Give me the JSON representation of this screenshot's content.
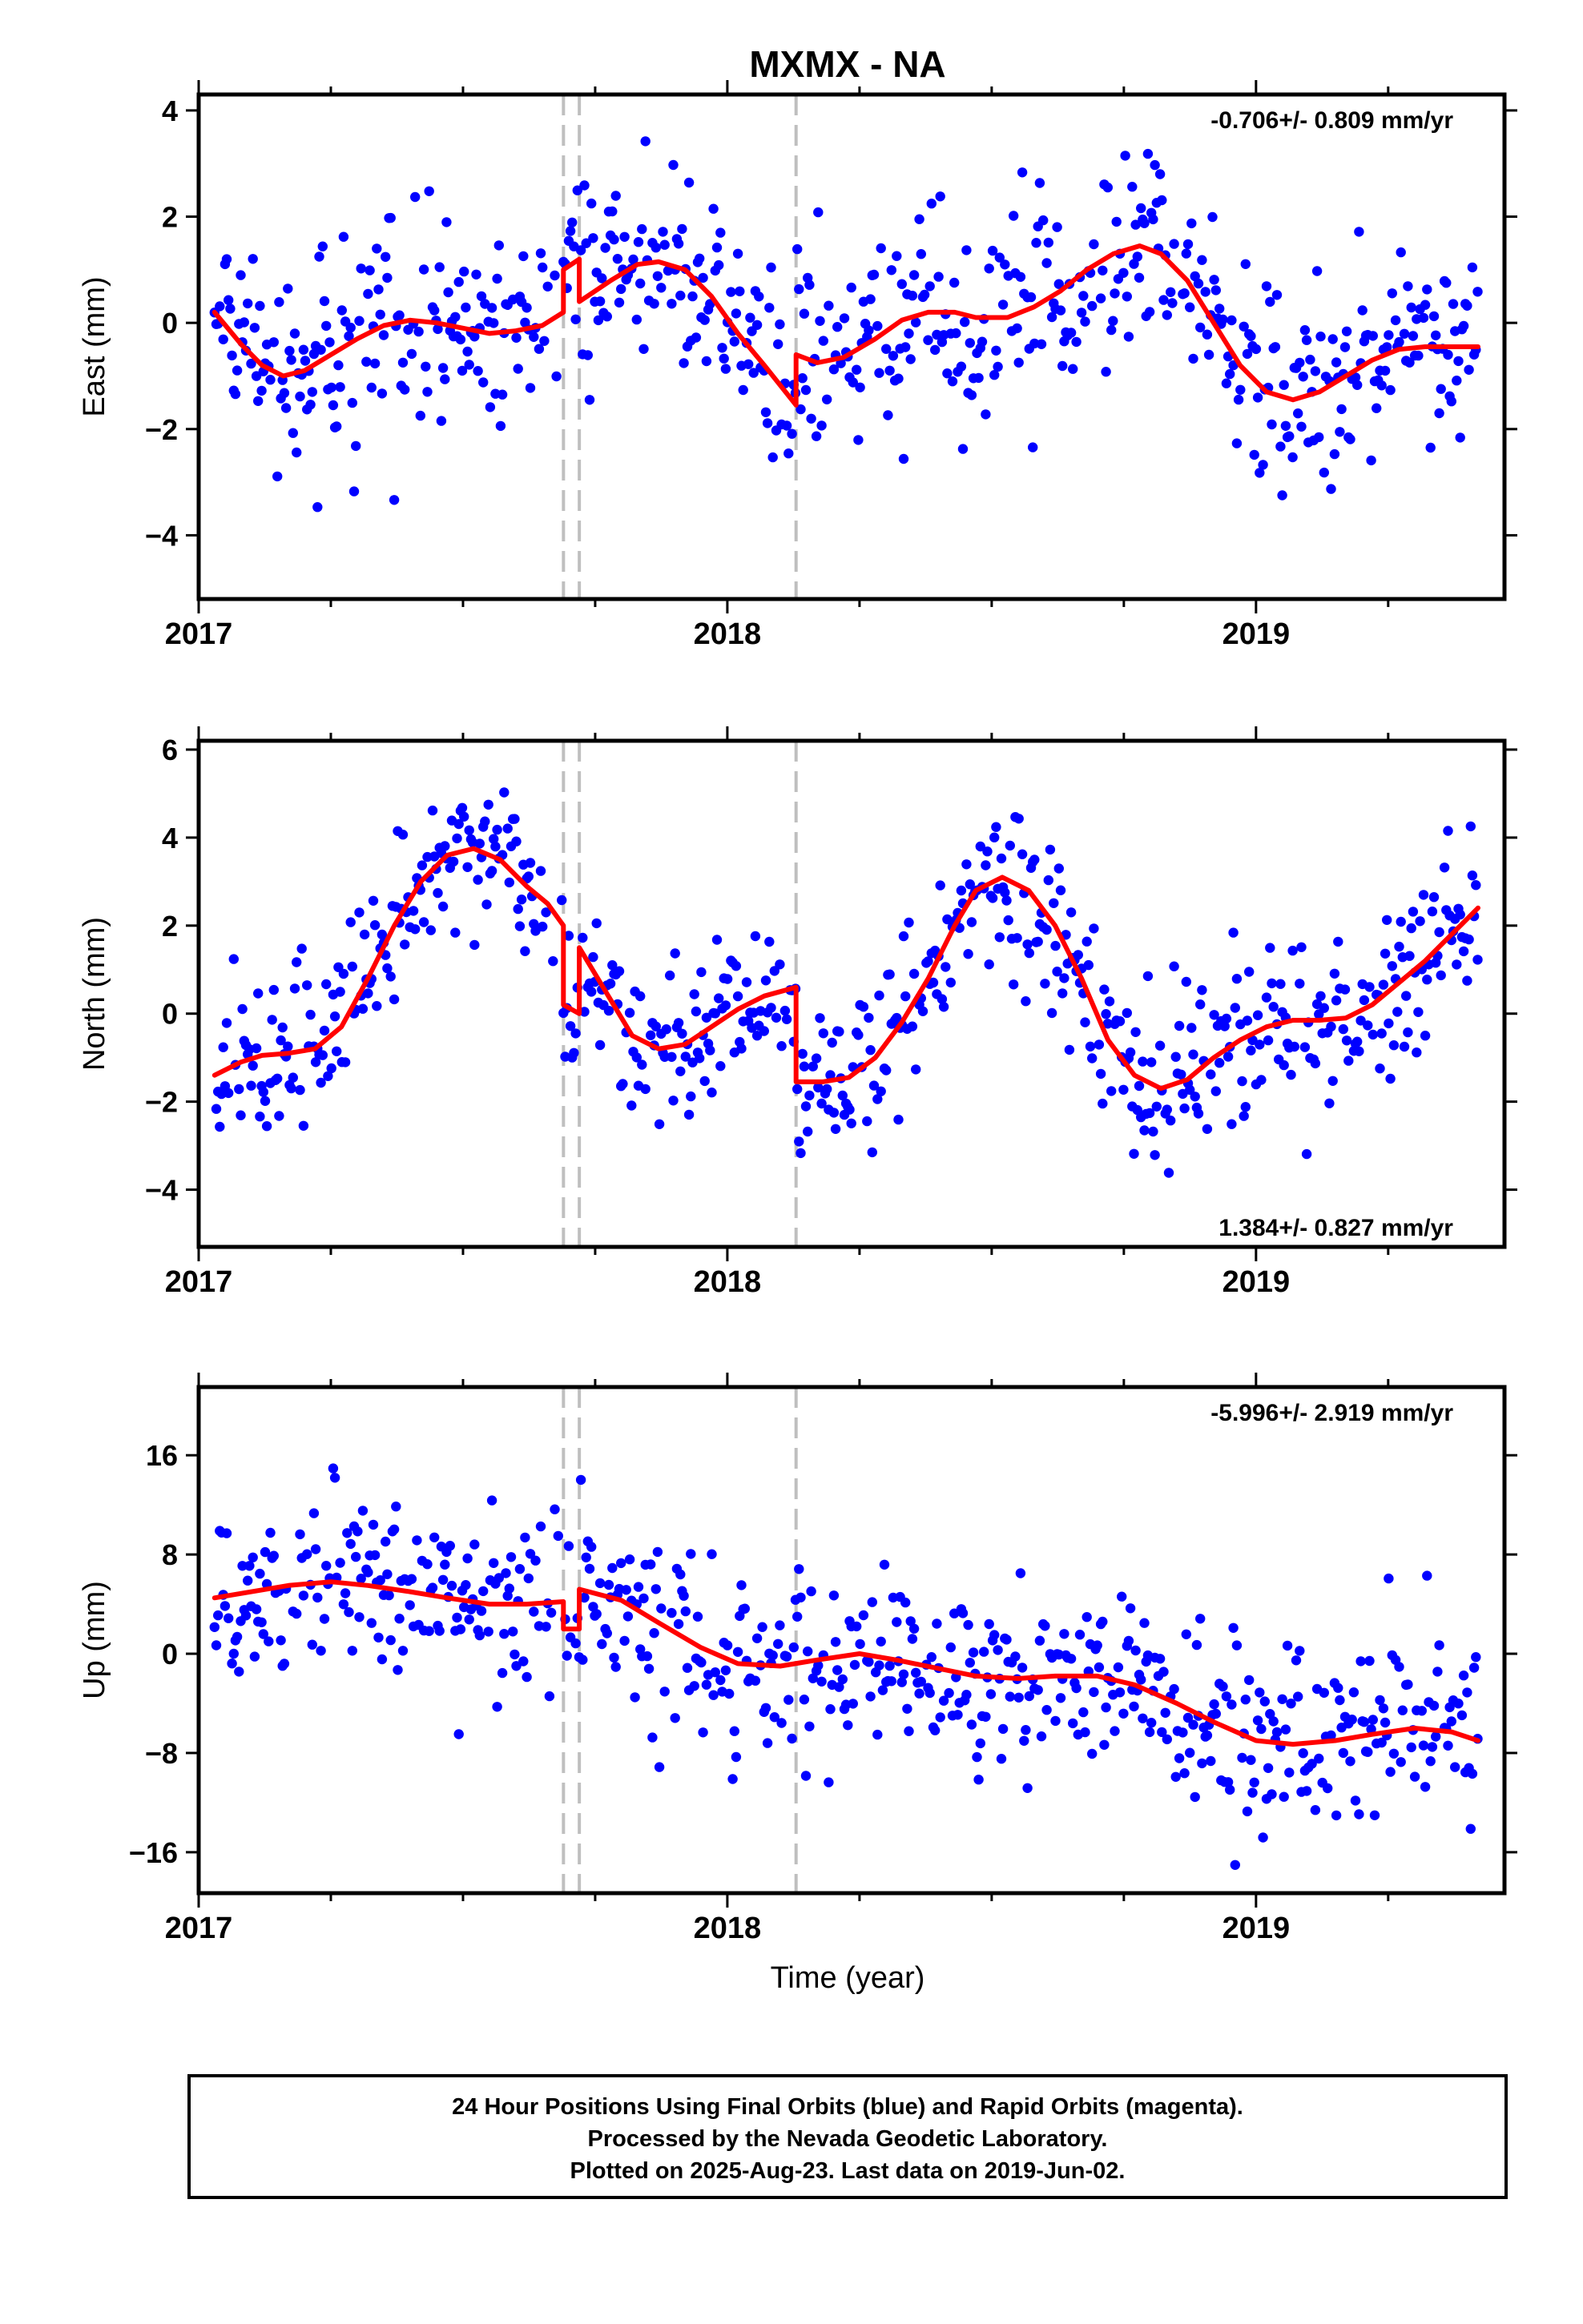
{
  "figure": {
    "title": "MXMX - NA",
    "xlabel": "Time (year)",
    "footer_lines": [
      "24 Hour Positions Using Final Orbits (blue) and Rapid Orbits (magenta).",
      "Processed by the Nevada Geodetic Laboratory.",
      "Plotted on 2025-Aug-23. Last data on 2019-Jun-02."
    ],
    "colors": {
      "points": "#0000ff",
      "fit": "#ff0000",
      "offset_lines": "#bfbfbf",
      "frame": "#000000"
    }
  },
  "chart_data": [
    {
      "type": "scatter",
      "name": "East",
      "ylabel": "East (mm)",
      "rate_label": "-0.706+/- 0.809 mm/yr",
      "rate_position": "top-right",
      "xlim": [
        2017.0,
        2019.47
      ],
      "ylim": [
        -5.2,
        4.3
      ],
      "xticks": [
        2017,
        2018,
        2019
      ],
      "yticks": [
        -4,
        -2,
        0,
        2,
        4
      ],
      "yticklabels": [
        "−4",
        "−2",
        "0",
        "2",
        "4"
      ],
      "offset_epochs": [
        2017.69,
        2017.72,
        2018.13
      ],
      "fit": {
        "x": [
          2017.03,
          2017.08,
          2017.12,
          2017.16,
          2017.2,
          2017.25,
          2017.3,
          2017.35,
          2017.4,
          2017.45,
          2017.5,
          2017.55,
          2017.6,
          2017.65,
          2017.69,
          2017.69,
          2017.72,
          2017.72,
          2017.78,
          2017.83,
          2017.87,
          2017.92,
          2017.97,
          2018.02,
          2018.07,
          2018.13,
          2018.13,
          2018.17,
          2018.22,
          2018.28,
          2018.33,
          2018.38,
          2018.43,
          2018.47,
          2018.53,
          2018.58,
          2018.63,
          2018.68,
          2018.73,
          2018.78,
          2018.82,
          2018.87,
          2018.92,
          2018.97,
          2019.02,
          2019.07,
          2019.12,
          2019.17,
          2019.22,
          2019.27,
          2019.32,
          2019.37,
          2019.42
        ],
        "y": [
          0.2,
          -0.4,
          -0.8,
          -1.0,
          -0.9,
          -0.6,
          -0.3,
          -0.05,
          0.05,
          0.0,
          -0.1,
          -0.2,
          -0.15,
          -0.05,
          0.2,
          1.0,
          1.2,
          0.4,
          0.8,
          1.1,
          1.15,
          1.0,
          0.5,
          -0.2,
          -0.8,
          -1.55,
          -0.6,
          -0.75,
          -0.65,
          -0.3,
          0.05,
          0.2,
          0.2,
          0.1,
          0.1,
          0.3,
          0.6,
          1.0,
          1.3,
          1.45,
          1.3,
          0.8,
          0.0,
          -0.8,
          -1.3,
          -1.45,
          -1.3,
          -1.0,
          -0.7,
          -0.5,
          -0.45,
          -0.45,
          -0.45
        ]
      }
    },
    {
      "type": "scatter",
      "name": "North",
      "ylabel": "North (mm)",
      "rate_label": "1.384+/- 0.827 mm/yr",
      "rate_position": "bottom-right",
      "xlim": [
        2017.0,
        2019.47
      ],
      "ylim": [
        -5.3,
        6.2
      ],
      "xticks": [
        2017,
        2018,
        2019
      ],
      "yticks": [
        -4,
        -2,
        0,
        2,
        4,
        6
      ],
      "yticklabels": [
        "−4",
        "−2",
        "0",
        "2",
        "4",
        "6"
      ],
      "offset_epochs": [
        2017.69,
        2017.72,
        2018.13
      ],
      "fit": {
        "x": [
          2017.03,
          2017.08,
          2017.12,
          2017.17,
          2017.22,
          2017.27,
          2017.32,
          2017.37,
          2017.42,
          2017.47,
          2017.52,
          2017.57,
          2017.62,
          2017.66,
          2017.69,
          2017.69,
          2017.72,
          2017.72,
          2017.77,
          2017.82,
          2017.87,
          2017.92,
          2017.97,
          2018.02,
          2018.07,
          2018.13,
          2018.13,
          2018.18,
          2018.23,
          2018.28,
          2018.33,
          2018.38,
          2018.43,
          2018.47,
          2018.52,
          2018.57,
          2018.62,
          2018.67,
          2018.72,
          2018.77,
          2018.82,
          2018.87,
          2018.92,
          2018.97,
          2019.02,
          2019.07,
          2019.12,
          2019.17,
          2019.22,
          2019.27,
          2019.32,
          2019.37,
          2019.42
        ],
        "y": [
          -1.4,
          -1.1,
          -0.95,
          -0.9,
          -0.8,
          -0.3,
          0.8,
          2.0,
          3.0,
          3.6,
          3.75,
          3.5,
          2.9,
          2.5,
          2.0,
          0.2,
          0.0,
          1.5,
          0.5,
          -0.5,
          -0.8,
          -0.7,
          -0.3,
          0.1,
          0.4,
          0.6,
          -1.55,
          -1.55,
          -1.45,
          -1.0,
          -0.2,
          0.8,
          2.0,
          2.8,
          3.1,
          2.8,
          2.0,
          0.8,
          -0.6,
          -1.4,
          -1.7,
          -1.5,
          -1.0,
          -0.6,
          -0.3,
          -0.15,
          -0.15,
          -0.1,
          0.2,
          0.7,
          1.2,
          1.8,
          2.4
        ]
      }
    },
    {
      "type": "scatter",
      "name": "Up",
      "ylabel": "Up (mm)",
      "rate_label": "-5.996+/- 2.919 mm/yr",
      "rate_position": "top-right",
      "xlim": [
        2017.0,
        2019.47
      ],
      "ylim": [
        -19.3,
        21.5
      ],
      "xticks": [
        2017,
        2018,
        2019
      ],
      "yticks": [
        -16,
        -8,
        0,
        8,
        16
      ],
      "yticklabels": [
        "−16",
        "−8",
        "0",
        "8",
        "16"
      ],
      "offset_epochs": [
        2017.69,
        2017.72,
        2018.13
      ],
      "fit": {
        "x": [
          2017.03,
          2017.1,
          2017.17,
          2017.25,
          2017.32,
          2017.4,
          2017.47,
          2017.55,
          2017.62,
          2017.69,
          2017.69,
          2017.72,
          2017.72,
          2017.8,
          2017.87,
          2017.95,
          2018.02,
          2018.1,
          2018.17,
          2018.25,
          2018.32,
          2018.4,
          2018.47,
          2018.55,
          2018.62,
          2018.7,
          2018.77,
          2018.85,
          2018.92,
          2019.0,
          2019.07,
          2019.15,
          2019.22,
          2019.3,
          2019.37,
          2019.42
        ],
        "y": [
          4.5,
          5.0,
          5.5,
          5.8,
          5.5,
          5.0,
          4.5,
          4.0,
          4.0,
          4.2,
          2.0,
          2.0,
          5.2,
          4.3,
          2.5,
          0.5,
          -0.8,
          -1.0,
          -0.5,
          0.0,
          -0.5,
          -1.2,
          -1.8,
          -2.0,
          -1.8,
          -1.8,
          -2.5,
          -4.0,
          -5.5,
          -7.0,
          -7.3,
          -7.0,
          -6.5,
          -6.0,
          -6.3,
          -7.0
        ]
      }
    }
  ]
}
